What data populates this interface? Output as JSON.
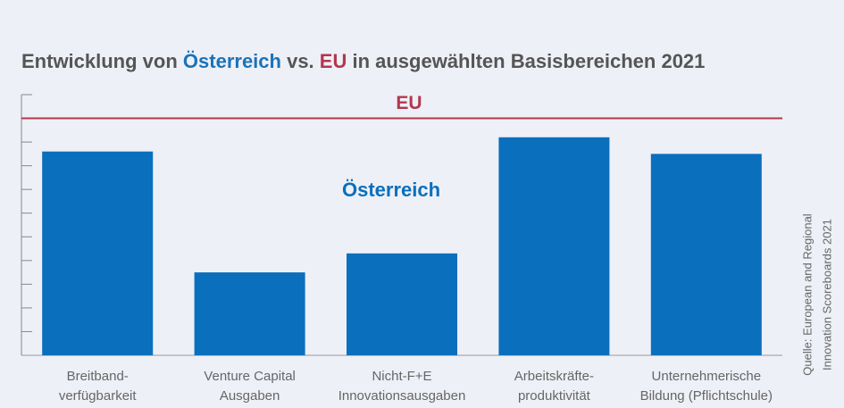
{
  "chart_data": {
    "type": "bar",
    "title_parts": [
      {
        "text": "Entwicklung von ",
        "color": "#555555"
      },
      {
        "text": "Österreich",
        "color": "#1a73b9"
      },
      {
        "text": " vs. ",
        "color": "#555555"
      },
      {
        "text": "EU",
        "color": "#b3374d"
      },
      {
        "text": " in ausgewählten Basisbereichen 2021",
        "color": "#555555"
      }
    ],
    "categories": [
      [
        "Breitband-",
        "verfügbarkeit"
      ],
      [
        "Venture Capital",
        "Ausgaben"
      ],
      [
        "Nicht-F+E",
        "Innovationsausgaben"
      ],
      [
        "Arbeitskräfte-",
        "produktivität"
      ],
      [
        "Unternehmerische",
        "Bildung (Pflichtschule)"
      ]
    ],
    "series": [
      {
        "name": "Österreich",
        "color": "#0a6fbd",
        "values": [
          86,
          35,
          43,
          92,
          85
        ]
      }
    ],
    "reference_lines": [
      {
        "label": "EU",
        "value": 100,
        "color": "#b3374d"
      }
    ],
    "ylim": [
      0,
      110
    ],
    "yticks": [
      0,
      10,
      20,
      30,
      40,
      50,
      60,
      70,
      80,
      90,
      100,
      110
    ],
    "source": [
      "Quelle: European and Regional",
      "Innovation Scoreboards 2021"
    ]
  }
}
